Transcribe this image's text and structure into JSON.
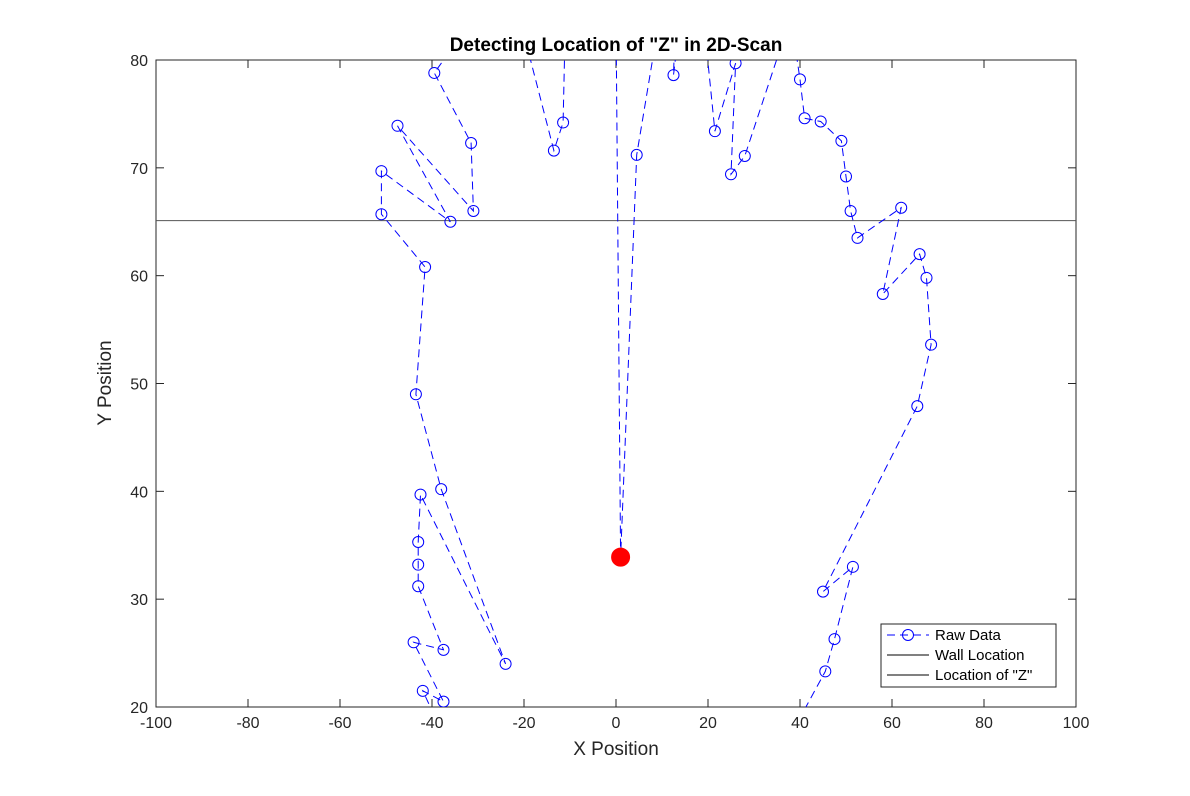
{
  "chart_data": {
    "type": "line",
    "title": "Detecting Location of \"Z\" in 2D-Scan",
    "xlabel": "X Position",
    "ylabel": "Y Position",
    "xlim": [
      -100,
      100
    ],
    "ylim": [
      20,
      80
    ],
    "xticks": [
      -100,
      -80,
      -60,
      -40,
      -20,
      0,
      20,
      40,
      60,
      80,
      100
    ],
    "yticks": [
      20,
      30,
      40,
      50,
      60,
      70,
      80
    ],
    "grid": false,
    "legend_position": "bottom-right",
    "series": [
      {
        "name": "Raw Data",
        "style": "dashed-circle",
        "color": "#0000ff",
        "points": [
          [
            -39.5,
            19.2
          ],
          [
            -42,
            21.5
          ],
          [
            -37.5,
            20.5
          ],
          [
            -44,
            26
          ],
          [
            -37.5,
            25.3
          ],
          [
            -43,
            31.2
          ],
          [
            -43,
            33.2
          ],
          [
            -43,
            35.3
          ],
          [
            -42.5,
            39.7
          ],
          [
            -24,
            24
          ],
          [
            -38,
            40.2
          ],
          [
            -43.5,
            49
          ],
          [
            -41.5,
            60.8
          ],
          [
            -51,
            65.7
          ],
          [
            -51,
            69.7
          ],
          [
            -36,
            65
          ],
          [
            -47.5,
            73.9
          ],
          [
            -31,
            66
          ],
          [
            -31.5,
            72.3
          ],
          [
            -39.5,
            78.8
          ],
          [
            -29,
            85
          ],
          [
            -21,
            84
          ],
          [
            -13.5,
            71.6
          ],
          [
            -11.5,
            74.2
          ],
          [
            -11,
            84
          ],
          [
            0,
            84
          ],
          [
            1,
            33.9
          ],
          [
            4.5,
            71.2
          ],
          [
            9.5,
            84
          ],
          [
            13,
            85
          ],
          [
            12.5,
            78.6
          ],
          [
            14,
            84
          ],
          [
            19,
            84
          ],
          [
            21.5,
            73.4
          ],
          [
            26,
            79.7
          ],
          [
            25,
            69.4
          ],
          [
            28,
            71.1
          ],
          [
            38,
            84
          ],
          [
            40,
            78.2
          ],
          [
            41,
            74.6
          ],
          [
            44.5,
            74.3
          ],
          [
            49,
            72.5
          ],
          [
            50,
            69.2
          ],
          [
            51,
            66
          ],
          [
            52.5,
            63.5
          ],
          [
            62,
            66.3
          ],
          [
            58,
            58.3
          ],
          [
            66,
            62
          ],
          [
            67.5,
            59.8
          ],
          [
            68.5,
            53.6
          ],
          [
            65.5,
            47.9
          ],
          [
            45,
            30.7
          ],
          [
            51.5,
            33
          ],
          [
            47.5,
            26.3
          ],
          [
            45.5,
            23.3
          ],
          [
            40,
            19
          ]
        ]
      },
      {
        "name": "Wall Location",
        "style": "solid",
        "color": "#555555",
        "points": [
          [
            -100,
            65.1
          ],
          [
            100,
            65.1
          ]
        ]
      },
      {
        "name": "Location of \"Z\"",
        "style": "marker",
        "color": "#ff0000",
        "points": [
          [
            1,
            33.9
          ]
        ]
      }
    ]
  },
  "legend": {
    "items": [
      "Raw Data",
      "Wall Location",
      "Location of \"Z\""
    ]
  }
}
